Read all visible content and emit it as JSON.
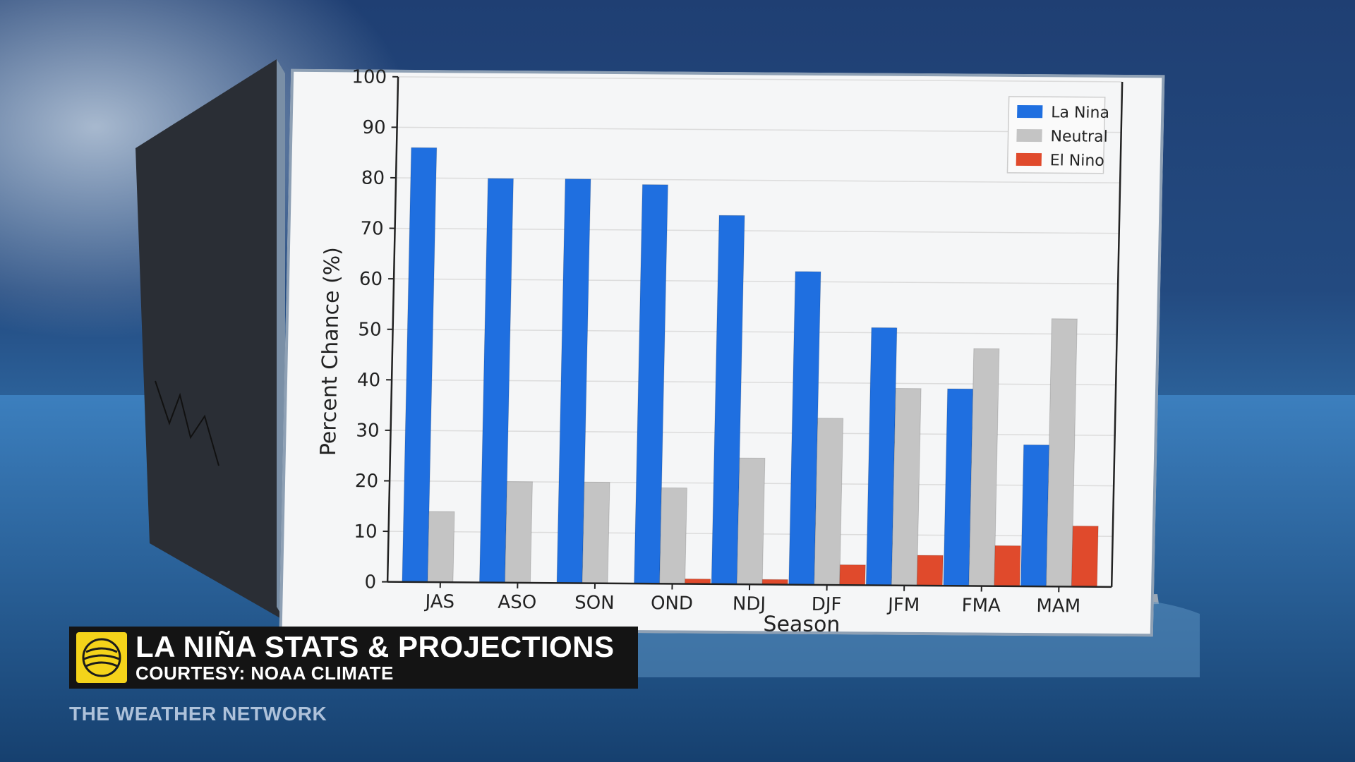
{
  "colors": {
    "la_nina": "#1f6fe0",
    "neutral": "#c4c4c4",
    "el_nino": "#e04a2c"
  },
  "chart_data": {
    "type": "bar",
    "title": "",
    "xlabel": "Season",
    "ylabel": "Percent Chance (%)",
    "ylim": [
      0,
      100
    ],
    "yticks": [
      0,
      10,
      20,
      30,
      40,
      50,
      60,
      70,
      80,
      90,
      100
    ],
    "grid": true,
    "legend_position": "top-right",
    "categories": [
      "JAS",
      "ASO",
      "SON",
      "OND",
      "NDJ",
      "DJF",
      "JFM",
      "FMA",
      "MAM"
    ],
    "series": [
      {
        "name": "La Nina",
        "values": [
          86,
          80,
          80,
          79,
          73,
          62,
          51,
          39,
          28
        ]
      },
      {
        "name": "Neutral",
        "values": [
          14,
          20,
          20,
          19,
          25,
          33,
          39,
          47,
          53
        ]
      },
      {
        "name": "El Nino",
        "values": [
          0,
          0,
          0,
          1,
          1,
          4,
          6,
          8,
          12
        ]
      }
    ]
  },
  "caption": {
    "title": "LA NIÑA STATS & PROJECTIONS",
    "subtitle": "COURTESY: NOAA CLIMATE"
  },
  "watermark": "THE WEATHER NETWORK"
}
